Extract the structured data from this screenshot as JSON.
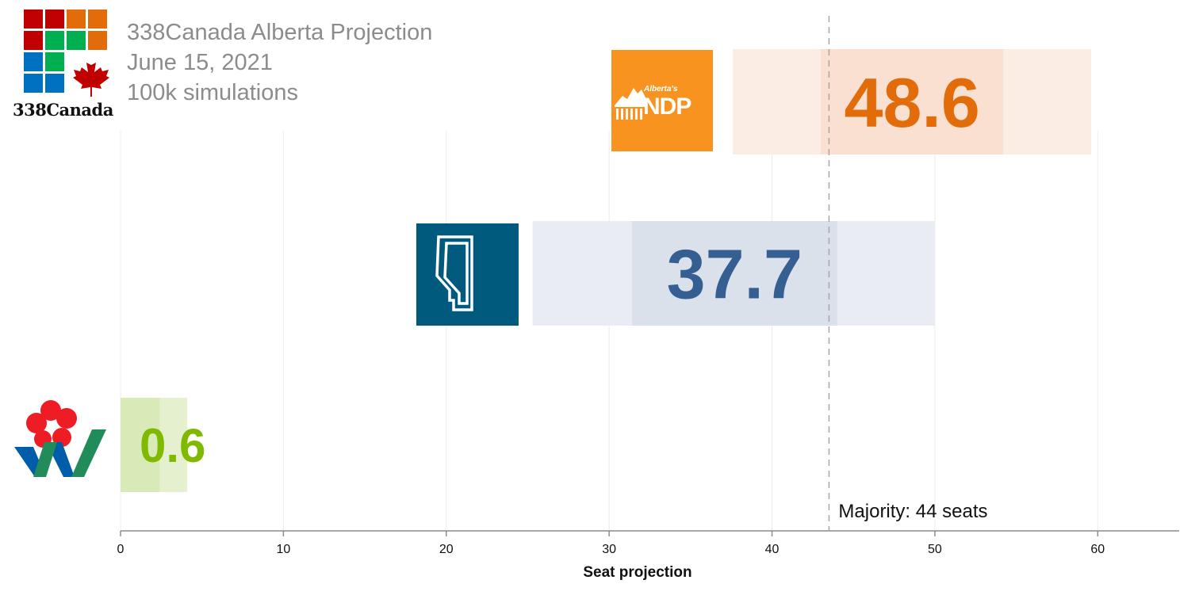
{
  "header": {
    "title": "338Canada Alberta Projection",
    "date": "June 15, 2021",
    "simulations": "100k simulations",
    "brand": "338Canada"
  },
  "logos": {
    "ndp": {
      "small": "Alberta's",
      "big": "NDP",
      "color": "#F7931E"
    },
    "ucp": {
      "color": "#005A7D"
    },
    "wip": {
      "flower_color": "#EE1C24",
      "blue": "#005DAA",
      "green": "#218C5A"
    }
  },
  "chart_data": {
    "type": "bar",
    "orientation": "horizontal",
    "title": "338Canada Alberta Projection",
    "xlabel": "Seat projection",
    "ylabel": "",
    "xlim": [
      0,
      65
    ],
    "xticks": [
      0,
      10,
      20,
      30,
      40,
      50,
      60
    ],
    "grid": true,
    "majority": {
      "value": 43.5,
      "label": "Majority: 44 seats"
    },
    "series": [
      {
        "name": "Alberta NDP",
        "projection": 48.6,
        "label": "48.6",
        "range_outer": [
          37.6,
          59.6
        ],
        "range_inner": [
          43.0,
          54.2
        ],
        "text_color": "#E36C0A",
        "outer_color": "#FBEDE3",
        "inner_color": "#F9E0D0"
      },
      {
        "name": "United Conservative Party",
        "projection": 37.7,
        "label": "37.7",
        "range_outer": [
          25.3,
          50.0
        ],
        "range_inner": [
          31.4,
          44.0
        ],
        "text_color": "#365F91",
        "outer_color": "#E9EDF3",
        "inner_color": "#DAE1EB"
      },
      {
        "name": "Wildrose Independence Party",
        "projection": 0.6,
        "label": "0.6",
        "range_outer": [
          0,
          4.1
        ],
        "range_inner": [
          0,
          2.4
        ],
        "text_color": "#7FBA00",
        "outer_color": "#E5F0CE",
        "inner_color": "#D9EAB9"
      }
    ]
  }
}
